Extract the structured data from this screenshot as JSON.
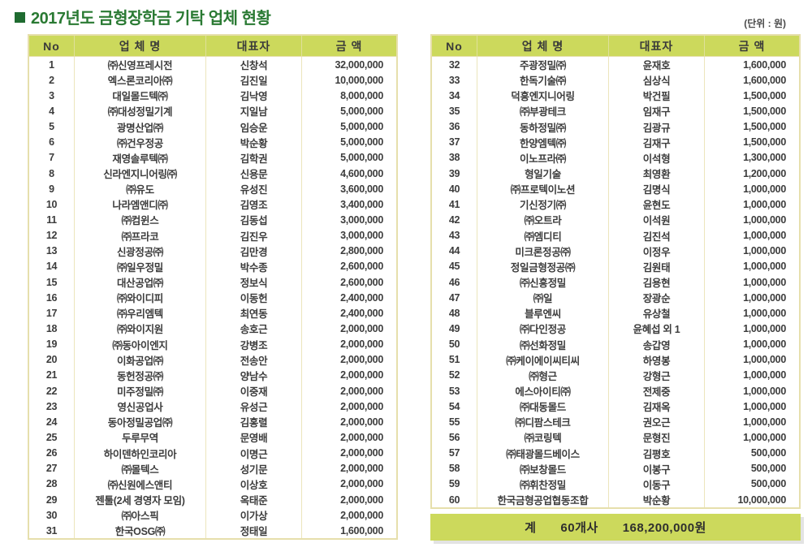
{
  "title": "2017년도 금형장학금 기탁 업체 현황",
  "unit_note": "(단위 : 원)",
  "headers": [
    "No",
    "업 체 명",
    "대표자",
    "금 액"
  ],
  "colors": {
    "title_green": "#2a7a33",
    "header_bg": "#ccd95c",
    "border": "#e6dfac",
    "text": "#3c3c3c"
  },
  "tables": [
    {
      "id": "left",
      "rows": [
        [
          "1",
          "㈜신영프레시전",
          "신창석",
          "32,000,000"
        ],
        [
          "2",
          "엑스론코리아㈜",
          "김진일",
          "10,000,000"
        ],
        [
          "3",
          "대일몰드텍㈜",
          "김낙영",
          "8,000,000"
        ],
        [
          "4",
          "㈜대성정밀기계",
          "지일남",
          "5,000,000"
        ],
        [
          "5",
          "광명산업㈜",
          "임승운",
          "5,000,000"
        ],
        [
          "6",
          "㈜건우정공",
          "박순황",
          "5,000,000"
        ],
        [
          "7",
          "재영솔루텍㈜",
          "김학권",
          "5,000,000"
        ],
        [
          "8",
          "신라엔지니어링㈜",
          "신용문",
          "4,600,000"
        ],
        [
          "9",
          "㈜유도",
          "유성진",
          "3,600,000"
        ],
        [
          "10",
          "나라엠앤디㈜",
          "김영조",
          "3,400,000"
        ],
        [
          "11",
          "㈜컴윈스",
          "김동섭",
          "3,000,000"
        ],
        [
          "12",
          "㈜프라코",
          "김진우",
          "3,000,000"
        ],
        [
          "13",
          "신광정공㈜",
          "김만경",
          "2,800,000"
        ],
        [
          "14",
          "㈜일우정밀",
          "박수종",
          "2,600,000"
        ],
        [
          "15",
          "대산공업㈜",
          "정보식",
          "2,600,000"
        ],
        [
          "16",
          "㈜와이디피",
          "이동헌",
          "2,400,000"
        ],
        [
          "17",
          "㈜우리엠텍",
          "최연동",
          "2,400,000"
        ],
        [
          "18",
          "㈜와이지원",
          "송호근",
          "2,000,000"
        ],
        [
          "19",
          "㈜동아이엔지",
          "강병조",
          "2,000,000"
        ],
        [
          "20",
          "이화공업㈜",
          "전송안",
          "2,000,000"
        ],
        [
          "21",
          "동헌정공㈜",
          "양남수",
          "2,000,000"
        ],
        [
          "22",
          "미주정밀㈜",
          "이중재",
          "2,000,000"
        ],
        [
          "23",
          "영신공업사",
          "유성근",
          "2,000,000"
        ],
        [
          "24",
          "동아정밀공업㈜",
          "김홍렬",
          "2,000,000"
        ],
        [
          "25",
          "두루무역",
          "문영배",
          "2,000,000"
        ],
        [
          "26",
          "하이덴하인코리아",
          "이명근",
          "2,000,000"
        ],
        [
          "27",
          "㈜몰텍스",
          "성기문",
          "2,000,000"
        ],
        [
          "28",
          "㈜신원에스앤티",
          "이상호",
          "2,000,000"
        ],
        [
          "29",
          "젠툴(2세 경영자 모임)",
          "옥태준",
          "2,000,000"
        ],
        [
          "30",
          "㈜아스픽",
          "이가상",
          "2,000,000"
        ],
        [
          "31",
          "한국OSG㈜",
          "정태일",
          "1,600,000"
        ]
      ]
    },
    {
      "id": "right",
      "rows": [
        [
          "32",
          "주광정밀㈜",
          "윤재호",
          "1,600,000"
        ],
        [
          "33",
          "한독기술㈜",
          "심상식",
          "1,600,000"
        ],
        [
          "34",
          "덕흥엔지니어링",
          "박건필",
          "1,500,000"
        ],
        [
          "35",
          "㈜부광테크",
          "임재구",
          "1,500,000"
        ],
        [
          "36",
          "동하정밀㈜",
          "김광규",
          "1,500,000"
        ],
        [
          "37",
          "한양엠텍㈜",
          "김재구",
          "1,500,000"
        ],
        [
          "38",
          "이노프라㈜",
          "이석형",
          "1,300,000"
        ],
        [
          "39",
          "형일기술",
          "최영환",
          "1,200,000"
        ],
        [
          "40",
          "㈜프로텍이노션",
          "김명식",
          "1,000,000"
        ],
        [
          "41",
          "기신정기㈜",
          "윤현도",
          "1,000,000"
        ],
        [
          "42",
          "㈜오트라",
          "이석원",
          "1,000,000"
        ],
        [
          "43",
          "㈜엠디티",
          "김진석",
          "1,000,000"
        ],
        [
          "44",
          "미크론정공㈜",
          "이정우",
          "1,000,000"
        ],
        [
          "45",
          "정일금형정공㈜",
          "김원태",
          "1,000,000"
        ],
        [
          "46",
          "㈜신흥정밀",
          "김용현",
          "1,000,000"
        ],
        [
          "47",
          "㈜일",
          "장광순",
          "1,000,000"
        ],
        [
          "48",
          "블루엔씨",
          "유상철",
          "1,000,000"
        ],
        [
          "49",
          "㈜다인정공",
          "윤혜섭 외 1",
          "1,000,000"
        ],
        [
          "50",
          "㈜선화정밀",
          "송갑영",
          "1,000,000"
        ],
        [
          "51",
          "㈜케이에이씨티씨",
          "하영봉",
          "1,000,000"
        ],
        [
          "52",
          "㈜형근",
          "강형근",
          "1,000,000"
        ],
        [
          "53",
          "에스아이티㈜",
          "전제중",
          "1,000,000"
        ],
        [
          "54",
          "㈜대동몰드",
          "김재옥",
          "1,000,000"
        ],
        [
          "55",
          "㈜디팜스테크",
          "권오근",
          "1,000,000"
        ],
        [
          "56",
          "㈜코링텍",
          "문형진",
          "1,000,000"
        ],
        [
          "57",
          "㈜태광몰드베이스",
          "김평호",
          "500,000"
        ],
        [
          "58",
          "㈜보창몰드",
          "이봉구",
          "500,000"
        ],
        [
          "59",
          "㈜휘찬정밀",
          "이동구",
          "500,000"
        ],
        [
          "60",
          "한국금형공업협동조합",
          "박순황",
          "10,000,000"
        ]
      ]
    }
  ],
  "total": {
    "label": "계",
    "count": "60개사",
    "amount": "168,200,000원"
  }
}
